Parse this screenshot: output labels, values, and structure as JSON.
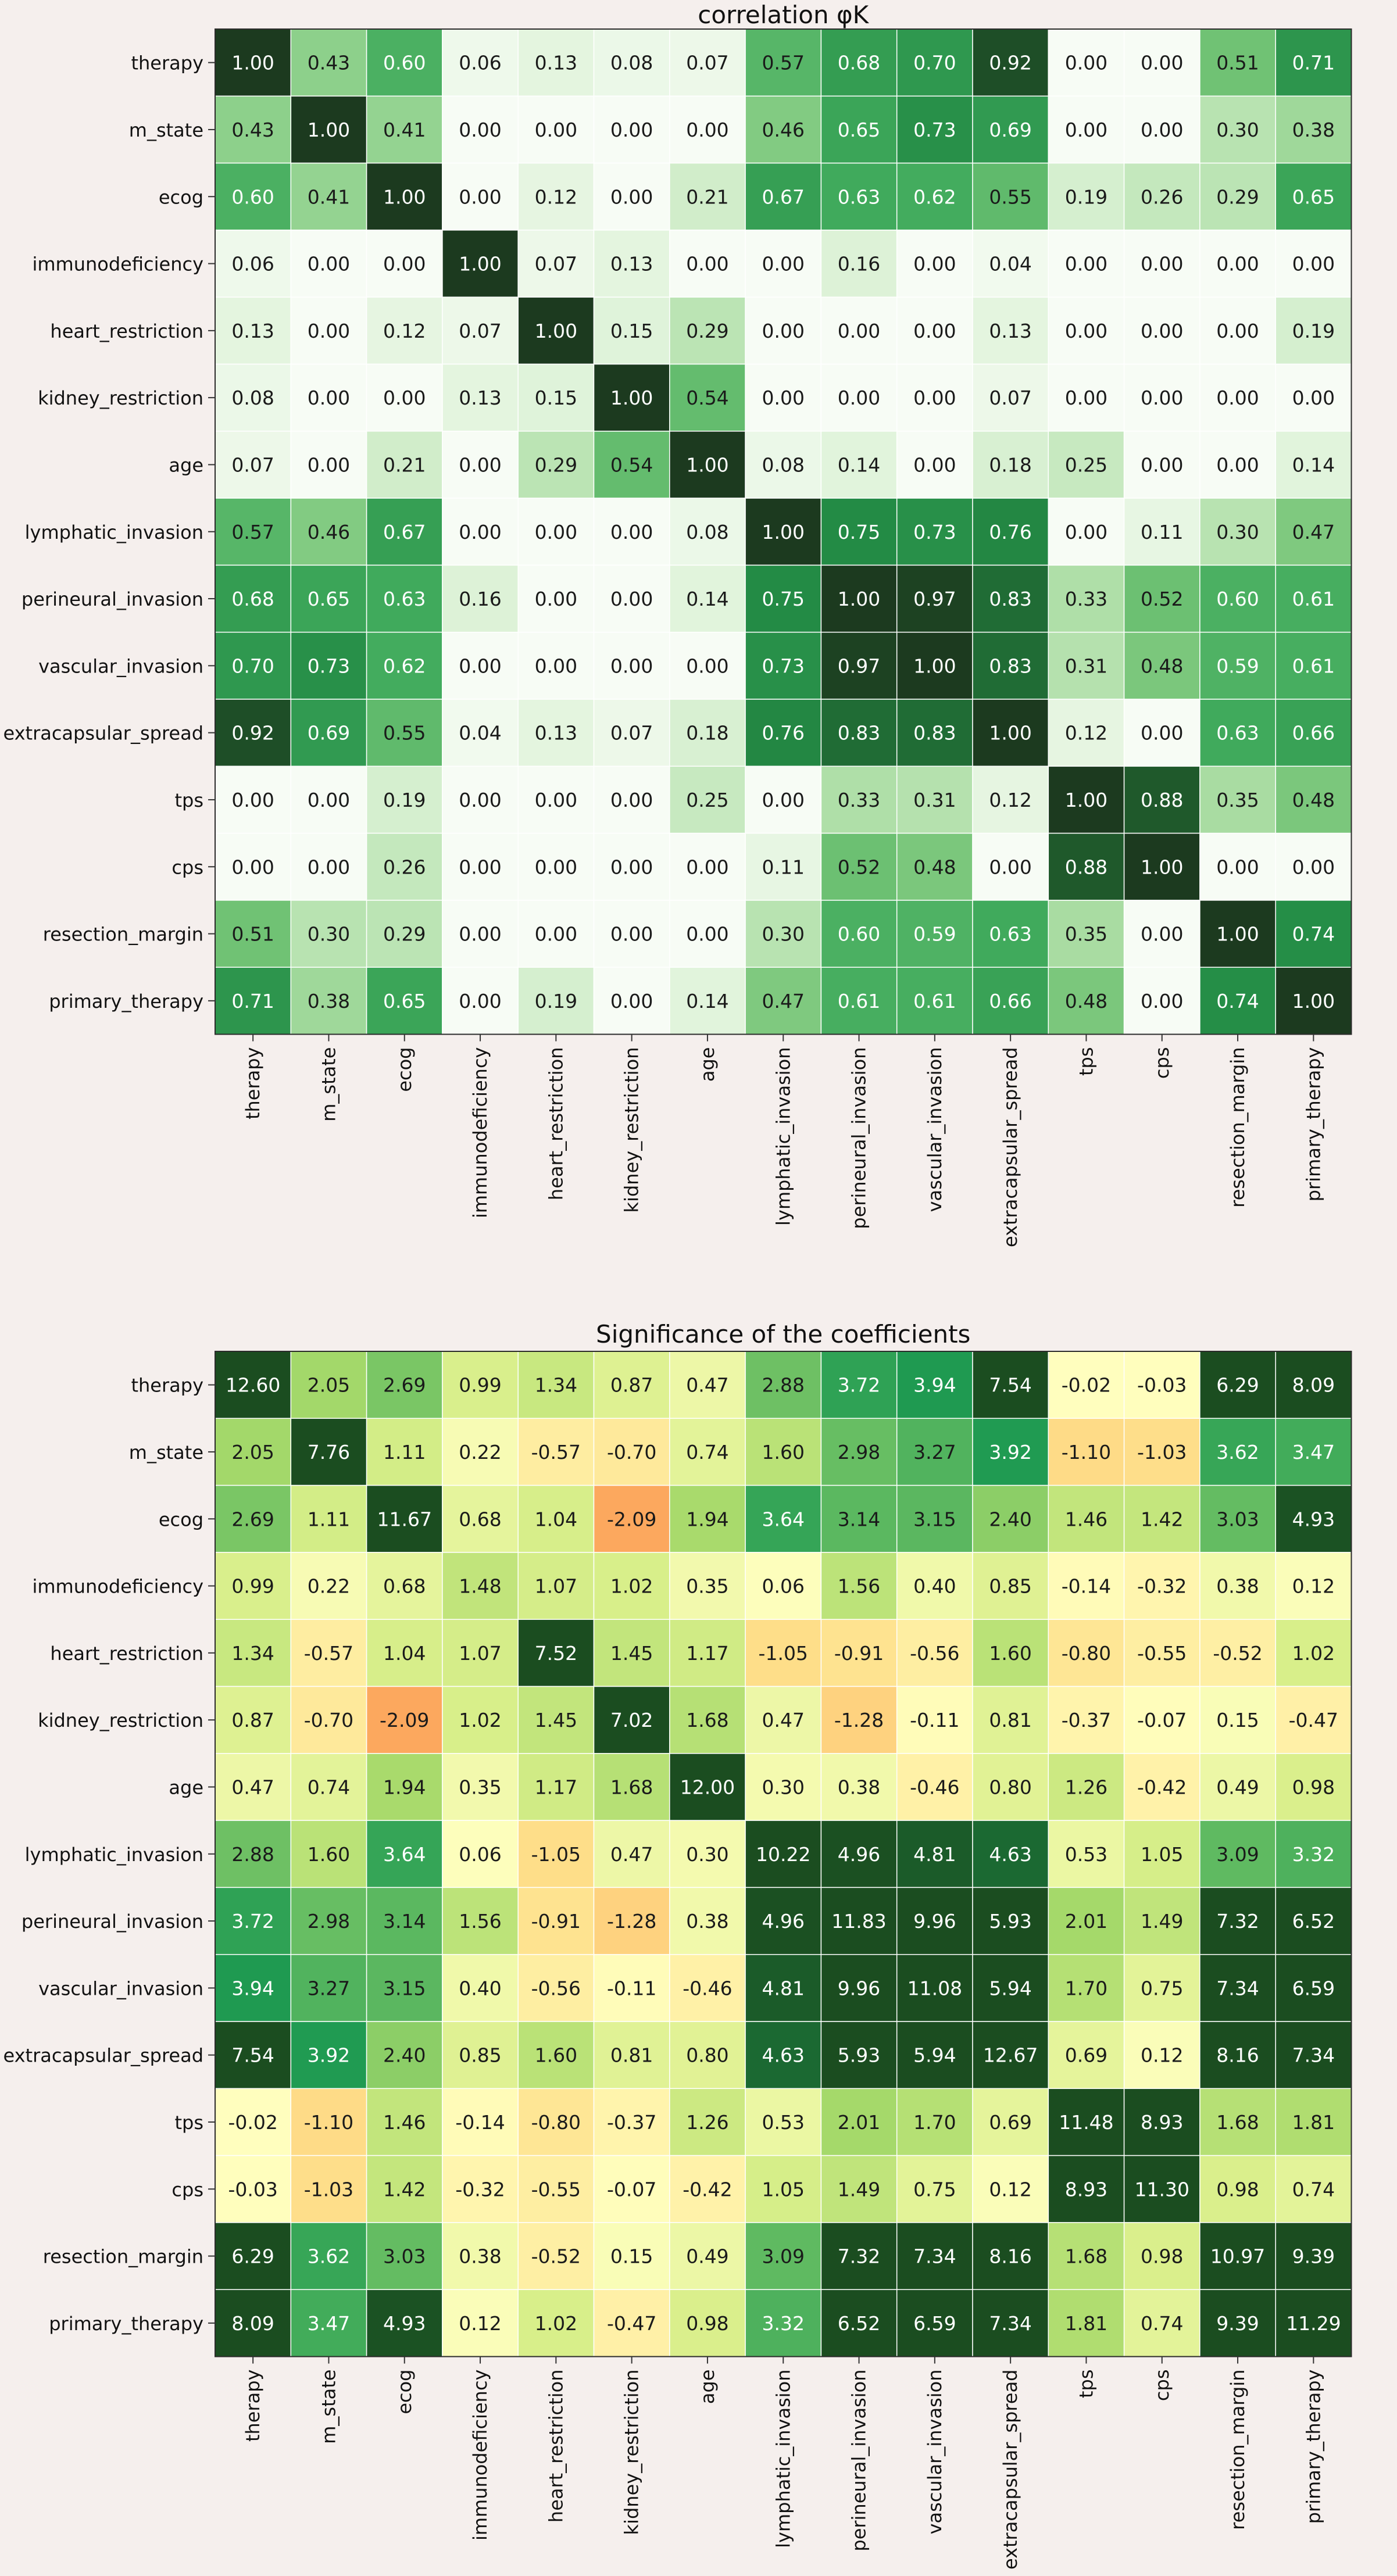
{
  "chart_data": [
    {
      "type": "heatmap",
      "title": "correlation φK",
      "xlabel": "",
      "ylabel": "",
      "colormap": "greens",
      "vmin": 0,
      "vmax": 1,
      "row_labels": [
        "therapy",
        "m_state",
        "ecog",
        "immunodeficiency",
        "heart_restriction",
        "kidney_restriction",
        "age",
        "lymphatic_invasion",
        "perineural_invasion",
        "vascular_invasion",
        "extracapsular_spread",
        "tps",
        "cps",
        "resection_margin",
        "primary_therapy"
      ],
      "col_labels": [
        "therapy",
        "m_state",
        "ecog",
        "immunodeficiency",
        "heart_restriction",
        "kidney_restriction",
        "age",
        "lymphatic_invasion",
        "perineural_invasion",
        "vascular_invasion",
        "extracapsular_spread",
        "tps",
        "cps",
        "resection_margin",
        "primary_therapy"
      ],
      "values": [
        [
          1.0,
          0.43,
          0.6,
          0.06,
          0.13,
          0.08,
          0.07,
          0.57,
          0.68,
          0.7,
          0.92,
          0.0,
          0.0,
          0.51,
          0.71
        ],
        [
          0.43,
          1.0,
          0.41,
          0.0,
          0.0,
          0.0,
          0.0,
          0.46,
          0.65,
          0.73,
          0.69,
          0.0,
          0.0,
          0.3,
          0.38
        ],
        [
          0.6,
          0.41,
          1.0,
          0.0,
          0.12,
          0.0,
          0.21,
          0.67,
          0.63,
          0.62,
          0.55,
          0.19,
          0.26,
          0.29,
          0.65
        ],
        [
          0.06,
          0.0,
          0.0,
          1.0,
          0.07,
          0.13,
          0.0,
          0.0,
          0.16,
          0.0,
          0.04,
          0.0,
          0.0,
          0.0,
          0.0
        ],
        [
          0.13,
          0.0,
          0.12,
          0.07,
          1.0,
          0.15,
          0.29,
          0.0,
          0.0,
          0.0,
          0.13,
          0.0,
          0.0,
          0.0,
          0.19
        ],
        [
          0.08,
          0.0,
          0.0,
          0.13,
          0.15,
          1.0,
          0.54,
          0.0,
          0.0,
          0.0,
          0.07,
          0.0,
          0.0,
          0.0,
          0.0
        ],
        [
          0.07,
          0.0,
          0.21,
          0.0,
          0.29,
          0.54,
          1.0,
          0.08,
          0.14,
          0.0,
          0.18,
          0.25,
          0.0,
          0.0,
          0.14
        ],
        [
          0.57,
          0.46,
          0.67,
          0.0,
          0.0,
          0.0,
          0.08,
          1.0,
          0.75,
          0.73,
          0.76,
          0.0,
          0.11,
          0.3,
          0.47
        ],
        [
          0.68,
          0.65,
          0.63,
          0.16,
          0.0,
          0.0,
          0.14,
          0.75,
          1.0,
          0.97,
          0.83,
          0.33,
          0.52,
          0.6,
          0.61
        ],
        [
          0.7,
          0.73,
          0.62,
          0.0,
          0.0,
          0.0,
          0.0,
          0.73,
          0.97,
          1.0,
          0.83,
          0.31,
          0.48,
          0.59,
          0.61
        ],
        [
          0.92,
          0.69,
          0.55,
          0.04,
          0.13,
          0.07,
          0.18,
          0.76,
          0.83,
          0.83,
          1.0,
          0.12,
          0.0,
          0.63,
          0.66
        ],
        [
          0.0,
          0.0,
          0.19,
          0.0,
          0.0,
          0.0,
          0.25,
          0.0,
          0.33,
          0.31,
          0.12,
          1.0,
          0.88,
          0.35,
          0.48
        ],
        [
          0.0,
          0.0,
          0.26,
          0.0,
          0.0,
          0.0,
          0.0,
          0.11,
          0.52,
          0.48,
          0.0,
          0.88,
          1.0,
          0.0,
          0.0
        ],
        [
          0.51,
          0.3,
          0.29,
          0.0,
          0.0,
          0.0,
          0.0,
          0.3,
          0.6,
          0.59,
          0.63,
          0.35,
          0.0,
          1.0,
          0.74
        ],
        [
          0.71,
          0.38,
          0.65,
          0.0,
          0.19,
          0.0,
          0.14,
          0.47,
          0.61,
          0.61,
          0.66,
          0.48,
          0.0,
          0.74,
          1.0
        ]
      ]
    },
    {
      "type": "heatmap",
      "title": "Significance of the coefficients",
      "xlabel": "",
      "ylabel": "",
      "colormap": "RdYlGn",
      "vmin": -5,
      "vmax": 5,
      "row_labels": [
        "therapy",
        "m_state",
        "ecog",
        "immunodeficiency",
        "heart_restriction",
        "kidney_restriction",
        "age",
        "lymphatic_invasion",
        "perineural_invasion",
        "vascular_invasion",
        "extracapsular_spread",
        "tps",
        "cps",
        "resection_margin",
        "primary_therapy"
      ],
      "col_labels": [
        "therapy",
        "m_state",
        "ecog",
        "immunodeficiency",
        "heart_restriction",
        "kidney_restriction",
        "age",
        "lymphatic_invasion",
        "perineural_invasion",
        "vascular_invasion",
        "extracapsular_spread",
        "tps",
        "cps",
        "resection_margin",
        "primary_therapy"
      ],
      "values": [
        [
          12.6,
          2.05,
          2.69,
          0.99,
          1.34,
          0.87,
          0.47,
          2.88,
          3.72,
          3.94,
          7.54,
          -0.02,
          -0.03,
          6.29,
          8.09
        ],
        [
          2.05,
          7.76,
          1.11,
          0.22,
          -0.57,
          -0.7,
          0.74,
          1.6,
          2.98,
          3.27,
          3.92,
          -1.1,
          -1.03,
          3.62,
          3.47
        ],
        [
          2.69,
          1.11,
          11.67,
          0.68,
          1.04,
          -2.09,
          1.94,
          3.64,
          3.14,
          3.15,
          2.4,
          1.46,
          1.42,
          3.03,
          4.93
        ],
        [
          0.99,
          0.22,
          0.68,
          1.48,
          1.07,
          1.02,
          0.35,
          0.06,
          1.56,
          0.4,
          0.85,
          -0.14,
          -0.32,
          0.38,
          0.12
        ],
        [
          1.34,
          -0.57,
          1.04,
          1.07,
          7.52,
          1.45,
          1.17,
          -1.05,
          -0.91,
          -0.56,
          1.6,
          -0.8,
          -0.55,
          -0.52,
          1.02
        ],
        [
          0.87,
          -0.7,
          -2.09,
          1.02,
          1.45,
          7.02,
          1.68,
          0.47,
          -1.28,
          -0.11,
          0.81,
          -0.37,
          -0.07,
          0.15,
          -0.47
        ],
        [
          0.47,
          0.74,
          1.94,
          0.35,
          1.17,
          1.68,
          12.0,
          0.3,
          0.38,
          -0.46,
          0.8,
          1.26,
          -0.42,
          0.49,
          0.98
        ],
        [
          2.88,
          1.6,
          3.64,
          0.06,
          -1.05,
          0.47,
          0.3,
          10.22,
          4.96,
          4.81,
          4.63,
          0.53,
          1.05,
          3.09,
          3.32
        ],
        [
          3.72,
          2.98,
          3.14,
          1.56,
          -0.91,
          -1.28,
          0.38,
          4.96,
          11.83,
          9.96,
          5.93,
          2.01,
          1.49,
          7.32,
          6.52
        ],
        [
          3.94,
          3.27,
          3.15,
          0.4,
          -0.56,
          -0.11,
          -0.46,
          4.81,
          9.96,
          11.08,
          5.94,
          1.7,
          0.75,
          7.34,
          6.59
        ],
        [
          7.54,
          3.92,
          2.4,
          0.85,
          1.6,
          0.81,
          0.8,
          4.63,
          5.93,
          5.94,
          12.67,
          0.69,
          0.12,
          8.16,
          7.34
        ],
        [
          -0.02,
          -1.1,
          1.46,
          -0.14,
          -0.8,
          -0.37,
          1.26,
          0.53,
          2.01,
          1.7,
          0.69,
          11.48,
          8.93,
          1.68,
          1.81
        ],
        [
          -0.03,
          -1.03,
          1.42,
          -0.32,
          -0.55,
          -0.07,
          -0.42,
          1.05,
          1.49,
          0.75,
          0.12,
          8.93,
          11.3,
          0.98,
          0.74
        ],
        [
          6.29,
          3.62,
          3.03,
          0.38,
          -0.52,
          0.15,
          0.49,
          3.09,
          7.32,
          7.34,
          8.16,
          1.68,
          0.98,
          10.97,
          9.39
        ],
        [
          8.09,
          3.47,
          4.93,
          0.12,
          1.02,
          -0.47,
          0.98,
          3.32,
          6.52,
          6.59,
          7.34,
          1.81,
          0.74,
          9.39,
          11.29
        ]
      ]
    }
  ]
}
